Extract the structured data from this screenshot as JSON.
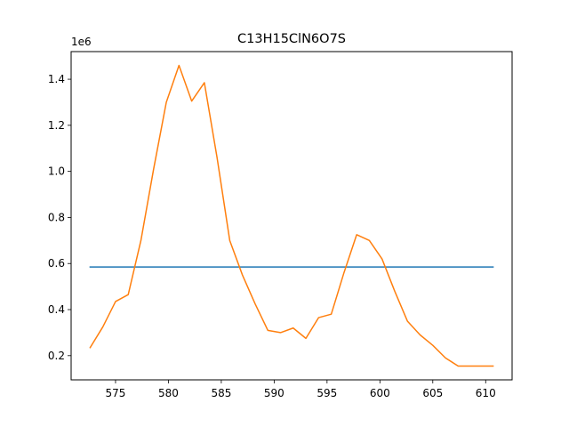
{
  "chart_data": {
    "type": "line",
    "title": "C13H15ClN6O7S",
    "xlabel": "",
    "ylabel": "",
    "y_multiplier_label": "1e6",
    "xlim": [
      570.8,
      612.5
    ],
    "ylim": [
      0.095,
      1.52
    ],
    "x_ticks": [
      575,
      580,
      585,
      590,
      595,
      600,
      605,
      610
    ],
    "y_ticks": [
      0.2,
      0.4,
      0.6,
      0.8,
      1.0,
      1.2,
      1.4
    ],
    "x_tick_labels": [
      "575",
      "580",
      "585",
      "590",
      "595",
      "600",
      "605",
      "610"
    ],
    "y_tick_labels": [
      "0.2",
      "0.4",
      "0.6",
      "0.8",
      "1.0",
      "1.2",
      "1.4"
    ],
    "grid": false,
    "legend": "none",
    "series": [
      {
        "color": "#1f77b4",
        "x": [
          572.6,
          610.7
        ],
        "y": [
          0.585,
          0.585
        ]
      },
      {
        "color": "#ff7f0e",
        "x": [
          572.6,
          573.8,
          575.0,
          576.2,
          577.4,
          578.6,
          579.8,
          581.0,
          582.2,
          583.4,
          584.6,
          585.8,
          587.0,
          588.2,
          589.4,
          590.6,
          591.8,
          593.0,
          594.2,
          595.4,
          596.6,
          597.8,
          599.0,
          600.2,
          601.4,
          602.6,
          603.8,
          605.0,
          606.2,
          607.4,
          608.6,
          609.8,
          610.7
        ],
        "y": [
          0.235,
          0.325,
          0.435,
          0.465,
          0.7,
          1.01,
          1.3,
          1.46,
          1.305,
          1.385,
          1.06,
          0.7,
          0.55,
          0.425,
          0.31,
          0.3,
          0.32,
          0.275,
          0.365,
          0.38,
          0.56,
          0.725,
          0.7,
          0.62,
          0.48,
          0.35,
          0.29,
          0.245,
          0.19,
          0.155,
          0.155,
          0.155,
          0.155
        ]
      }
    ]
  }
}
